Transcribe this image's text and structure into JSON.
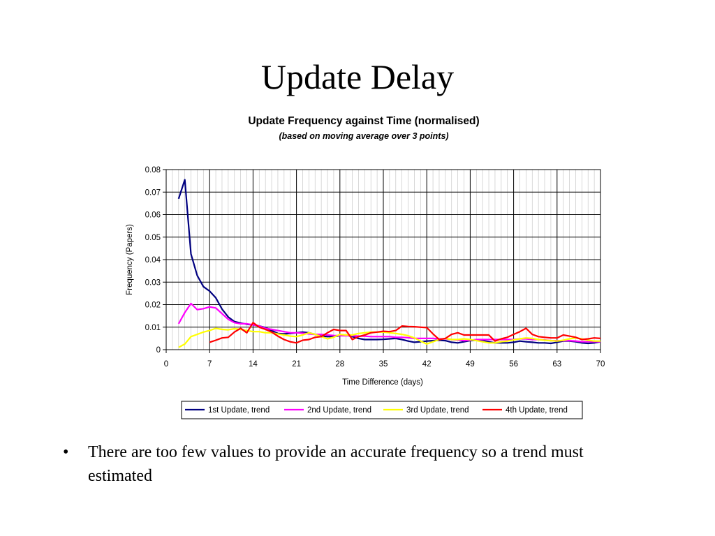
{
  "slide": {
    "title": "Update Delay",
    "bullet_marker": "•",
    "bullet_text": "There are too few values to provide an accurate frequency so a trend must estimated"
  },
  "chart_data": {
    "type": "line",
    "title": "Update Frequency against Time (normalised)",
    "subtitle": "(based on moving average over 3 points)",
    "xlabel": "Time Difference (days)",
    "ylabel": "Frequency (Papers)",
    "xlim": [
      0,
      70
    ],
    "ylim": [
      0,
      0.08
    ],
    "xticks": [
      "0",
      "7",
      "14",
      "21",
      "28",
      "35",
      "42",
      "49",
      "56",
      "63",
      "70"
    ],
    "yticks": [
      "0",
      "0.01",
      "0.02",
      "0.03",
      "0.04",
      "0.05",
      "0.06",
      "0.07",
      "0.08"
    ],
    "grid": "major and minor vertical, major horizontal",
    "legend_position": "bottom",
    "series": [
      {
        "name": "1st Update, trend",
        "color": "#000080",
        "x": [
          2,
          3,
          4,
          5,
          6,
          7,
          8,
          9,
          10,
          11,
          12,
          13,
          14,
          15,
          16,
          17,
          18,
          19,
          20,
          21,
          22,
          23,
          24,
          25,
          26,
          27,
          28,
          29,
          30,
          31,
          32,
          33,
          34,
          35,
          36,
          37,
          38,
          39,
          40,
          41,
          42,
          43,
          44,
          45,
          46,
          47,
          48,
          49,
          50,
          51,
          52,
          53,
          54,
          55,
          56,
          57,
          58,
          59,
          60,
          61,
          62,
          63,
          64,
          65,
          66,
          67,
          68,
          69,
          70
        ],
        "y": [
          0.067,
          0.0755,
          0.0425,
          0.033,
          0.028,
          0.026,
          0.023,
          0.018,
          0.0145,
          0.0125,
          0.0118,
          0.0113,
          0.011,
          0.0105,
          0.0098,
          0.0085,
          0.0072,
          0.007,
          0.0072,
          0.0075,
          0.0078,
          0.0075,
          0.0068,
          0.006,
          0.0058,
          0.0058,
          0.0062,
          0.0065,
          0.0058,
          0.005,
          0.0045,
          0.0045,
          0.0045,
          0.0046,
          0.0048,
          0.005,
          0.0045,
          0.0038,
          0.0033,
          0.0035,
          0.0038,
          0.004,
          0.0042,
          0.004,
          0.0033,
          0.003,
          0.0035,
          0.004,
          0.0042,
          0.004,
          0.0035,
          0.003,
          0.003,
          0.003,
          0.0033,
          0.0038,
          0.0035,
          0.0033,
          0.003,
          0.003,
          0.0028,
          0.0033,
          0.0038,
          0.0038,
          0.0035,
          0.003,
          0.0028,
          0.003,
          0.0035
        ]
      },
      {
        "name": "2nd Update, trend",
        "color": "#ff00ff",
        "x": [
          2,
          3,
          4,
          5,
          6,
          7,
          8,
          9,
          10,
          11,
          12,
          13,
          14,
          15,
          16,
          17,
          18,
          19,
          20,
          21,
          22,
          23,
          24,
          25,
          26,
          27,
          28,
          29,
          30,
          31,
          32,
          33,
          34,
          35,
          36,
          37,
          38,
          39,
          40,
          41,
          42,
          43,
          44,
          45,
          46,
          47,
          48,
          49,
          50,
          51,
          52,
          53,
          54,
          55,
          56,
          57,
          58,
          59,
          60,
          61,
          62,
          63,
          64,
          65,
          66,
          67,
          68,
          69,
          70
        ],
        "y": [
          0.0115,
          0.0165,
          0.0205,
          0.0178,
          0.0182,
          0.019,
          0.0185,
          0.016,
          0.0135,
          0.012,
          0.0115,
          0.0115,
          0.011,
          0.0105,
          0.0095,
          0.009,
          0.0085,
          0.008,
          0.0075,
          0.0075,
          0.0073,
          0.007,
          0.0068,
          0.0068,
          0.0065,
          0.0063,
          0.0062,
          0.0062,
          0.0062,
          0.006,
          0.006,
          0.0058,
          0.0058,
          0.0058,
          0.0058,
          0.0055,
          0.0055,
          0.0053,
          0.005,
          0.005,
          0.005,
          0.005,
          0.0048,
          0.0048,
          0.0045,
          0.0043,
          0.004,
          0.0042,
          0.0045,
          0.0045,
          0.0045,
          0.0045,
          0.0045,
          0.0045,
          0.0045,
          0.0048,
          0.0048,
          0.0045,
          0.0045,
          0.0043,
          0.004,
          0.004,
          0.004,
          0.004,
          0.0038,
          0.0035,
          0.0035,
          0.0035,
          0.0035
        ]
      },
      {
        "name": "3rd Update, trend",
        "color": "#ffff00",
        "x": [
          2,
          3,
          4,
          5,
          6,
          7,
          8,
          9,
          10,
          11,
          12,
          13,
          14,
          15,
          16,
          17,
          18,
          19,
          20,
          21,
          22,
          23,
          24,
          25,
          26,
          27,
          28,
          29,
          30,
          31,
          32,
          33,
          34,
          35,
          36,
          37,
          38,
          39,
          40,
          41,
          42,
          43,
          44,
          45,
          46,
          47,
          48,
          49,
          50,
          51,
          52,
          53,
          54,
          55,
          56,
          57,
          58,
          59,
          60,
          61,
          62,
          63,
          64,
          65,
          66,
          67,
          68,
          69,
          70
        ],
        "y": [
          0.001,
          0.0025,
          0.0058,
          0.0068,
          0.0078,
          0.0085,
          0.0095,
          0.009,
          0.0088,
          0.0093,
          0.009,
          0.0085,
          0.008,
          0.008,
          0.0075,
          0.0075,
          0.007,
          0.0065,
          0.006,
          0.0058,
          0.0065,
          0.0075,
          0.0068,
          0.0058,
          0.0048,
          0.0055,
          0.0068,
          0.0065,
          0.0065,
          0.0072,
          0.0075,
          0.0078,
          0.0078,
          0.0078,
          0.0075,
          0.0072,
          0.0068,
          0.0062,
          0.0052,
          0.0038,
          0.0025,
          0.0035,
          0.0045,
          0.005,
          0.0045,
          0.0045,
          0.0048,
          0.0045,
          0.004,
          0.0035,
          0.003,
          0.003,
          0.0035,
          0.0038,
          0.0043,
          0.0048,
          0.0052,
          0.005,
          0.0045,
          0.0042,
          0.004,
          0.0038,
          0.0042,
          0.0048,
          0.0052,
          0.0048,
          0.0042,
          0.0038,
          0.0038
        ]
      },
      {
        "name": "4th Update, trend",
        "color": "#ff0000",
        "x": [
          7,
          8,
          9,
          10,
          11,
          12,
          13,
          14,
          15,
          16,
          17,
          18,
          19,
          20,
          21,
          22,
          23,
          24,
          25,
          26,
          27,
          28,
          29,
          30,
          31,
          32,
          33,
          34,
          35,
          36,
          37,
          38,
          39,
          40,
          41,
          42,
          43,
          44,
          45,
          46,
          47,
          48,
          49,
          50,
          51,
          52,
          53,
          54,
          55,
          56,
          57,
          58,
          59,
          60,
          61,
          62,
          63,
          64,
          65,
          66,
          67,
          68,
          69,
          70
        ],
        "y": [
          0.0033,
          0.0042,
          0.0052,
          0.0055,
          0.0078,
          0.0095,
          0.0075,
          0.012,
          0.01,
          0.009,
          0.0078,
          0.006,
          0.0045,
          0.0035,
          0.003,
          0.0042,
          0.0045,
          0.0055,
          0.0058,
          0.0075,
          0.009,
          0.0085,
          0.0085,
          0.0045,
          0.0058,
          0.0065,
          0.0075,
          0.0078,
          0.0082,
          0.008,
          0.0085,
          0.0105,
          0.0103,
          0.0102,
          0.01,
          0.0098,
          0.007,
          0.0045,
          0.005,
          0.0068,
          0.0075,
          0.0065,
          0.0065,
          0.0065,
          0.0065,
          0.0065,
          0.0038,
          0.0048,
          0.0055,
          0.0068,
          0.008,
          0.0095,
          0.0068,
          0.0058,
          0.0055,
          0.0052,
          0.0052,
          0.0065,
          0.006,
          0.0055,
          0.0045,
          0.0048,
          0.0052,
          0.005
        ]
      }
    ]
  }
}
